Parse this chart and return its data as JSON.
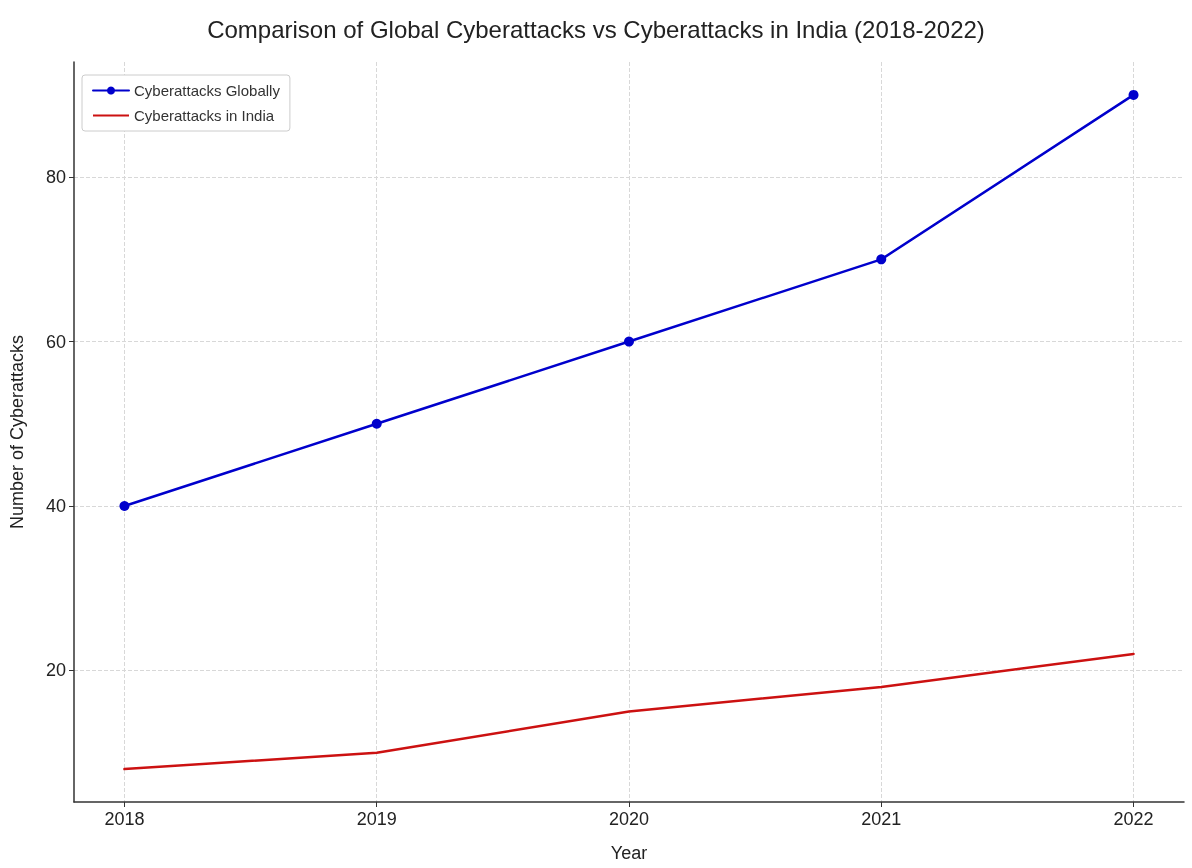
{
  "chart_data": {
    "type": "line",
    "title": "Comparison of Global Cyberattacks vs Cyberattacks in India (2018-2022)",
    "xlabel": "Year",
    "ylabel": "Number of Cyberattacks",
    "x": [
      2018,
      2019,
      2020,
      2021,
      2022
    ],
    "series": [
      {
        "name": "Cyberattacks Globally",
        "color": "#0000cc",
        "values": [
          40,
          50,
          60,
          70,
          90
        ],
        "marker": "circle"
      },
      {
        "name": "Cyberattacks in India",
        "color": "#cc1111",
        "values": [
          8,
          10,
          15,
          18,
          22
        ],
        "marker": "none"
      }
    ],
    "xlim": [
      2017.8,
      2022.2
    ],
    "xticks": [
      2018,
      2019,
      2020,
      2021,
      2022
    ],
    "ylim": [
      4,
      94
    ],
    "yticks": [
      20,
      40,
      60,
      80
    ],
    "grid": true,
    "legend": "top left",
    "line_style": "solid"
  }
}
